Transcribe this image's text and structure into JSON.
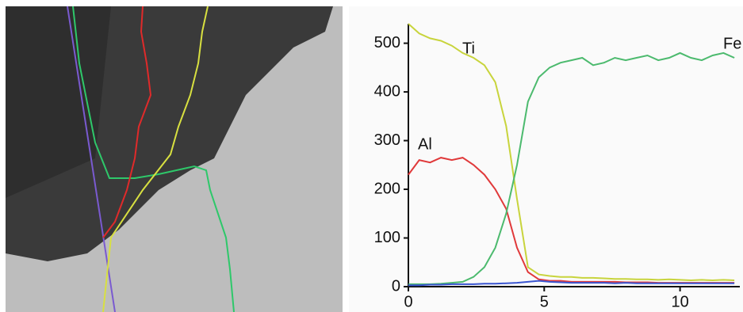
{
  "chart_data": {
    "type": "line",
    "x": [
      0,
      0.4,
      0.8,
      1.2,
      1.6,
      2.0,
      2.4,
      2.8,
      3.2,
      3.6,
      4.0,
      4.4,
      4.8,
      5.2,
      5.6,
      6.0,
      6.4,
      6.8,
      7.2,
      7.6,
      8.0,
      8.4,
      8.8,
      9.2,
      9.6,
      10.0,
      10.4,
      10.8,
      11.2,
      11.6,
      12.0
    ],
    "series": [
      {
        "name": "Ti",
        "color": "#c8d43c",
        "values": [
          540,
          520,
          510,
          505,
          495,
          480,
          470,
          455,
          420,
          330,
          180,
          40,
          25,
          22,
          20,
          20,
          18,
          18,
          17,
          16,
          16,
          15,
          15,
          14,
          15,
          14,
          13,
          14,
          13,
          14,
          13
        ]
      },
      {
        "name": "Al",
        "color": "#e0393a",
        "values": [
          230,
          260,
          255,
          265,
          260,
          265,
          250,
          230,
          200,
          160,
          80,
          30,
          15,
          12,
          12,
          10,
          10,
          10,
          10,
          10,
          9,
          9,
          9,
          8,
          8,
          8,
          8,
          8,
          8,
          8,
          8
        ]
      },
      {
        "name": "Fe",
        "color": "#4cba6e",
        "values": [
          5,
          5,
          5,
          6,
          8,
          10,
          20,
          40,
          80,
          150,
          250,
          380,
          430,
          450,
          460,
          465,
          470,
          455,
          460,
          470,
          465,
          470,
          475,
          465,
          470,
          480,
          470,
          465,
          475,
          480,
          470
        ]
      },
      {
        "color": "#3a55d0",
        "values": [
          3,
          3,
          4,
          4,
          5,
          5,
          5,
          6,
          6,
          7,
          8,
          10,
          12,
          10,
          9,
          8,
          8,
          8,
          8,
          7,
          8,
          7,
          7,
          7,
          7,
          7,
          7,
          7,
          7,
          7,
          7
        ]
      }
    ],
    "xlim": [
      0,
      12.2
    ],
    "xticks": [
      0,
      5,
      10
    ],
    "ylim": [
      0,
      540
    ],
    "yticks": [
      0,
      100,
      200,
      300,
      400,
      500
    ]
  }
}
